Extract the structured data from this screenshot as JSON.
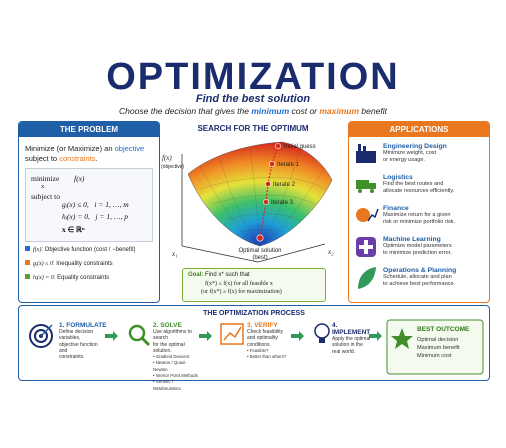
{
  "header": {
    "title": "OPTIMIZATION",
    "tagline": "Find the best solution",
    "subtitle": {
      "before": "Choose the decision that gives the ",
      "minimum": "minimum",
      "middle": " cost or ",
      "maximum": "maximum",
      "after": " benefit"
    }
  },
  "problem": {
    "title": "THE PROBLEM",
    "intro": {
      "before": "Minimize (or Maximize) an ",
      "objective": "objective",
      "middle": " subject to ",
      "constraints": "constraints",
      "after": "."
    },
    "formula": {
      "minimize": "minimize",
      "variable": "x",
      "objective": "f(x)",
      "subject_to": "subject to",
      "constraints": [
        "gᵢ(x) ≤ 0,   i = 1, …, m",
        "hⱼ(x) = 0,   j = 1, …, p",
        "x ∈ ℝⁿ"
      ]
    },
    "legend": [
      {
        "symbol": "f(x)",
        "text": ": Objective function (cost / −benefit)"
      },
      {
        "symbol": "gᵢ(x) ≤ 0",
        "text": ": Inequality constraints"
      },
      {
        "symbol": "hⱼ(x) = 0",
        "text": ": Equality constraints"
      }
    ]
  },
  "search": {
    "title": "SEARCH FOR THE OPTIMUM",
    "axis_y": "f(x)",
    "axis_y_note": "(objective)",
    "axis_x1": "x₁",
    "axis_x2": "x₂",
    "points": [
      "Initial guess",
      "Iterate 1",
      "Iterate 2",
      "Iterate 3"
    ],
    "optimum": [
      "Optimal solution",
      "(best)"
    ],
    "goal": {
      "label": "Goal:",
      "line1": "Find x* such that",
      "line2": "f(x*) ≤ f(x) for all feasible x",
      "line3": "(or f(x*) ≥ f(x) for maximization)"
    }
  },
  "applications": {
    "title": "APPLICATIONS",
    "items": [
      {
        "title": "Engineering Design",
        "text": [
          "Minimize weight, cost",
          "or energy usage."
        ]
      },
      {
        "title": "Logistics",
        "text": [
          "Find the best routes and",
          "allocate resources efficiently."
        ]
      },
      {
        "title": "Finance",
        "text": [
          "Maximize return for a given",
          "risk or minimize portfolio risk."
        ]
      },
      {
        "title": "Machine Learning",
        "text": [
          "Optimize model parameters",
          "to minimize prediction error."
        ]
      },
      {
        "title": "Operations & Planning",
        "text": [
          "Schedule, allocate and plan",
          "to achieve best performance."
        ]
      }
    ]
  },
  "process": {
    "title": "THE OPTIMIZATION PROCESS",
    "steps": [
      {
        "title": "1. FORMULATE",
        "text": [
          "Define decision variables,",
          "objective function and",
          "constraints."
        ]
      },
      {
        "title": "2. SOLVE",
        "text": [
          "Use algorithms to search",
          "for the optimal solution."
        ],
        "bullets": [
          "Gradient Descent",
          "Newton / Quasi-Newton",
          "Interior Point Methods",
          "Genetic / Metaheuristics"
        ]
      },
      {
        "title": "3. VERIFY",
        "text": [
          "Check feasibility",
          "and optimality",
          "conditions."
        ],
        "bullets": [
          "Feasible?",
          "Better than others?"
        ]
      },
      {
        "title": "4. IMPLEMENT",
        "text": [
          "Apply the optimal",
          "solution in the",
          "real world."
        ]
      }
    ],
    "outcome": {
      "title": "BEST OUTCOME",
      "text": [
        "Optimal decision",
        "Maximum benefit",
        "Minimum cost"
      ]
    }
  }
}
